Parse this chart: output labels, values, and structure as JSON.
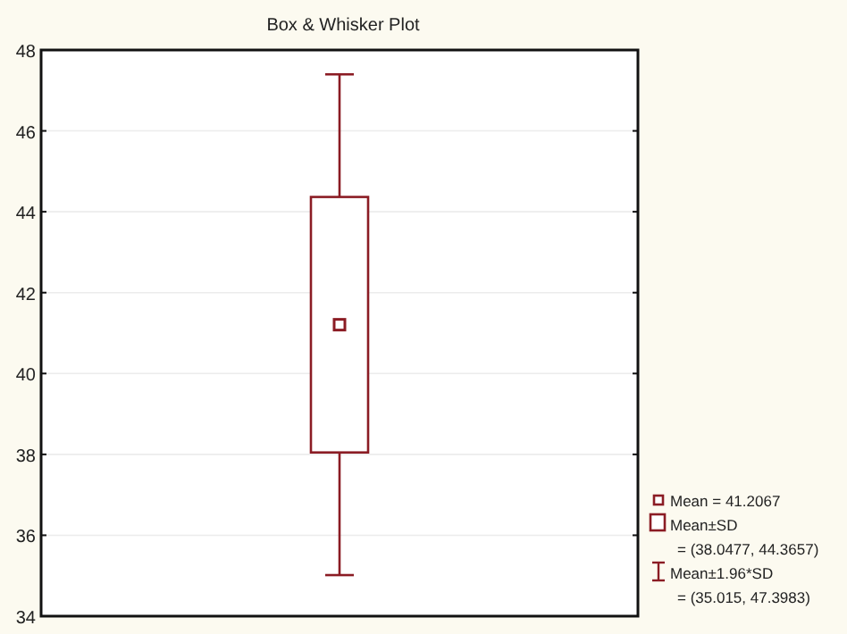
{
  "chart_data": {
    "type": "box",
    "title": "Box & Whisker Plot",
    "categories": [
      null
    ],
    "boxes": [
      {
        "low": 35.015,
        "q1": 38.0477,
        "median": 41.2067,
        "q3": 44.3657,
        "high": 47.3983
      }
    ],
    "color": "#8b1c24",
    "ylim": [
      34,
      48
    ],
    "yticks": [
      34,
      36,
      38,
      40,
      42,
      44,
      46,
      48
    ],
    "grid": "y",
    "marker": "square",
    "annotations": [
      "Mean = 41.2067",
      "Mean±SD",
      "= (38.0477, 44.3657)",
      "Mean±1.96*SD",
      "= (35.015, 47.3983)"
    ]
  }
}
